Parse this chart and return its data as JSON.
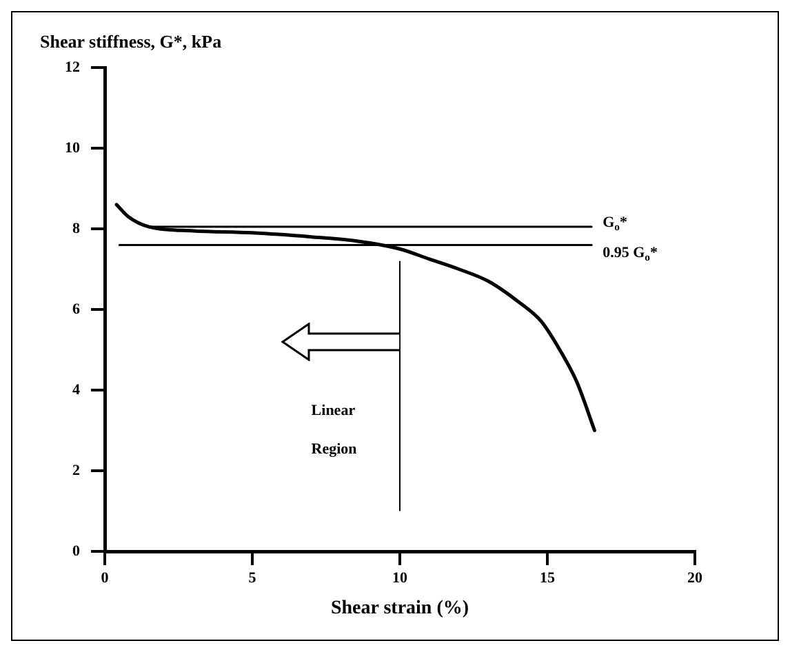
{
  "chart_data": {
    "type": "line",
    "ylabel": "Shear stiffness, G*, kPa",
    "xlabel": "Shear strain (%)",
    "xlim": [
      0,
      20
    ],
    "xticks": [
      0,
      5,
      10,
      15,
      20
    ],
    "ylim": [
      0,
      12
    ],
    "yticks": [
      0,
      2,
      4,
      6,
      8,
      10,
      12
    ],
    "grid": false,
    "legend": false,
    "marker": "none",
    "line_style": "solid",
    "series": [
      {
        "color": "#000000",
        "x": [
          0.4,
          0.8,
          1.5,
          3,
          5,
          7,
          8.5,
          10,
          11,
          12,
          13,
          14,
          14.8,
          15.5,
          16,
          16.6
        ],
        "values": [
          8.6,
          8.3,
          8.05,
          7.95,
          7.9,
          7.8,
          7.7,
          7.5,
          7.25,
          7.0,
          6.7,
          6.2,
          5.7,
          4.9,
          4.2,
          3.0
        ]
      },
      {
        "name": "G$_{o}$*",
        "color": "#000000",
        "x": [
          1.5,
          16.5
        ],
        "values": [
          8.05,
          8.05
        ]
      },
      {
        "name": "0.95 G$_{o}$*",
        "color": "#000000",
        "x": [
          0.5,
          16.5
        ],
        "values": [
          7.6,
          7.6
        ]
      }
    ],
    "ref_lines": [
      {
        "axis": "x",
        "value": 10,
        "color": "#000000"
      }
    ],
    "annotations": [
      "Linear",
      "Region"
    ]
  }
}
